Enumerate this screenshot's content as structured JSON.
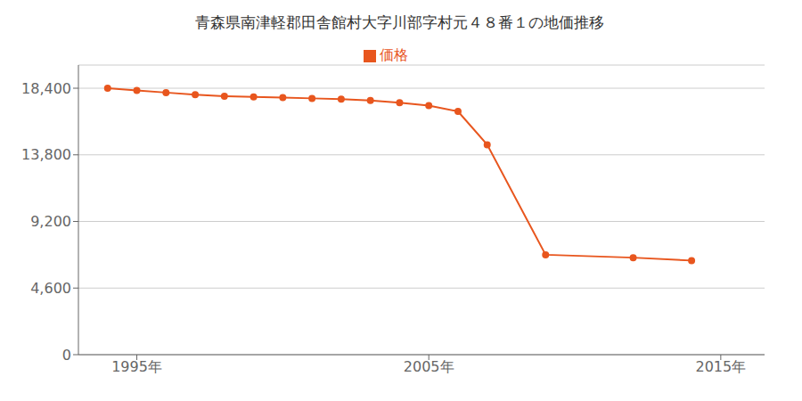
{
  "chart_data": {
    "type": "line",
    "title": "青森県南津軽郡田舎館村大字川部字村元４８番１の地価推移",
    "x": [
      1994,
      1995,
      1996,
      1997,
      1998,
      1999,
      2000,
      2001,
      2002,
      2003,
      2004,
      2005,
      2006,
      2007,
      2009,
      2012,
      2014
    ],
    "series": [
      {
        "name": "価格",
        "color": "#e8561e",
        "marker": "circle",
        "values": [
          18400,
          18250,
          18100,
          17950,
          17850,
          17800,
          17750,
          17700,
          17650,
          17550,
          17400,
          17200,
          16800,
          14500,
          6900,
          6700,
          6500
        ]
      }
    ],
    "xlim": [
      1993,
      2016.5
    ],
    "xticks": [
      {
        "value": 1995,
        "label": "1995年"
      },
      {
        "value": 2005,
        "label": "2005年"
      },
      {
        "value": 2015,
        "label": "2015年"
      }
    ],
    "ylim": [
      0,
      20000
    ],
    "yticks": [
      0,
      {
        "value": 4600,
        "label": "4,600"
      },
      {
        "value": 9200,
        "label": "9,200"
      },
      {
        "value": 13800,
        "label": "13,800"
      },
      {
        "value": 18400,
        "label": "18,400"
      }
    ],
    "grid": "y",
    "legend": "top"
  }
}
